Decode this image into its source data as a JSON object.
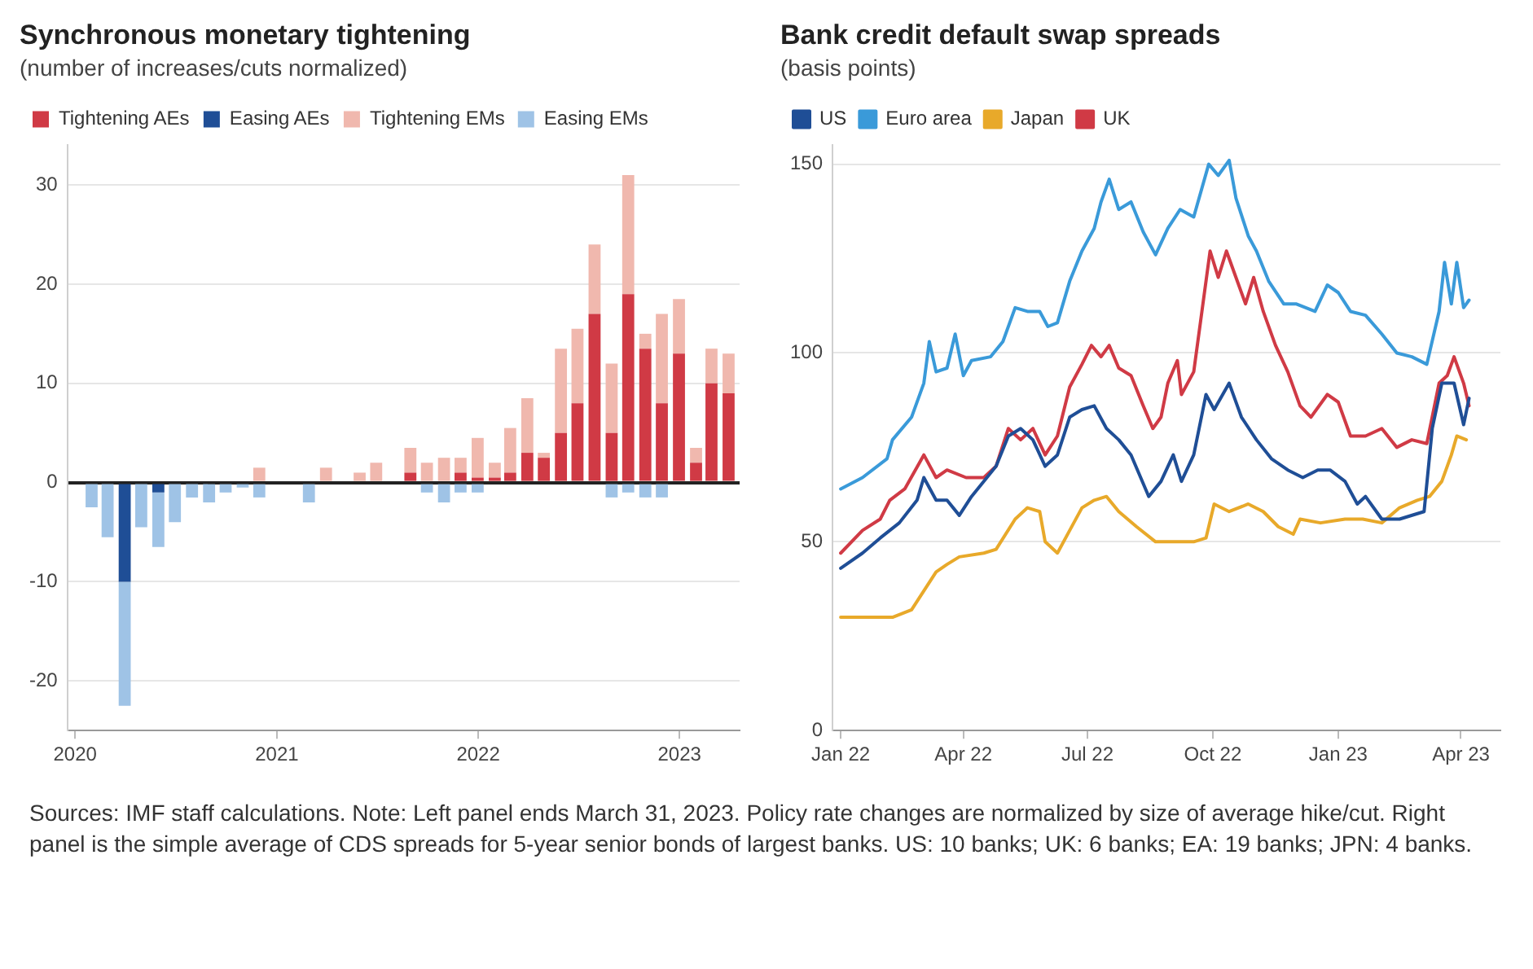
{
  "chart_data": [
    {
      "type": "bar",
      "title": "Synchronous monetary tightening",
      "subtitle": "(number of increases/cuts normalized)",
      "stacked": true,
      "legend": "top left",
      "grid": "y",
      "x": [
        "2020-01-31",
        "2020-02-29",
        "2020-03-31",
        "2020-04-30",
        "2020-05-31",
        "2020-06-30",
        "2020-07-31",
        "2020-08-31",
        "2020-09-30",
        "2020-10-31",
        "2020-11-30",
        "2020-12-31",
        "2021-01-31",
        "2021-02-28",
        "2021-03-31",
        "2021-04-30",
        "2021-05-31",
        "2021-06-30",
        "2021-07-31",
        "2021-08-31",
        "2021-09-30",
        "2021-10-31",
        "2021-11-30",
        "2021-12-31",
        "2022-01-31",
        "2022-02-28",
        "2022-03-31",
        "2022-04-30",
        "2022-05-31",
        "2022-06-30",
        "2022-07-31",
        "2022-08-31",
        "2022-09-30",
        "2022-10-31",
        "2022-11-30",
        "2022-12-31",
        "2023-01-31",
        "2023-02-28",
        "2023-03-31"
      ],
      "xlim": [
        "2019-12-18",
        "2023-04-20"
      ],
      "xticks": [
        {
          "value": "2020-01-01",
          "label": "2020"
        },
        {
          "value": "2021-01-01",
          "label": "2021"
        },
        {
          "value": "2022-01-01",
          "label": "2022"
        },
        {
          "value": "2023-01-01",
          "label": "2023"
        }
      ],
      "ylim": [
        -25,
        34
      ],
      "yticks": [
        -20,
        -10,
        0,
        10,
        20,
        30
      ],
      "series": [
        {
          "name": "Tightening AEs",
          "color": "#d03a45",
          "values": [
            null,
            null,
            null,
            null,
            null,
            null,
            null,
            null,
            null,
            null,
            null,
            null,
            null,
            null,
            null,
            null,
            null,
            null,
            null,
            1,
            null,
            null,
            1,
            0.5,
            0.5,
            1,
            3,
            2.5,
            5,
            8,
            17,
            5,
            19,
            13.5,
            8,
            13,
            2,
            10,
            9
          ]
        },
        {
          "name": "Easing AEs",
          "color": "#1f4e96",
          "values": [
            null,
            null,
            -10,
            null,
            -1,
            null,
            null,
            null,
            null,
            null,
            null,
            null,
            null,
            null,
            null,
            null,
            null,
            null,
            null,
            null,
            null,
            null,
            null,
            null,
            null,
            null,
            null,
            null,
            null,
            null,
            null,
            null,
            null,
            null,
            null,
            null,
            null,
            null,
            null
          ]
        },
        {
          "name": "Tightening EMs",
          "color": "#f0b8ae",
          "values": [
            null,
            null,
            null,
            null,
            null,
            null,
            null,
            null,
            null,
            null,
            1.5,
            null,
            null,
            null,
            1.5,
            null,
            1,
            2,
            null,
            2.5,
            2,
            2.5,
            1.5,
            4,
            1.5,
            4.5,
            5.5,
            0.5,
            8.5,
            7.5,
            7,
            7,
            12,
            1.5,
            9,
            5.5,
            1.5,
            3.5,
            4
          ]
        },
        {
          "name": "Easing EMs",
          "color": "#9fc3e6",
          "values": [
            -2.5,
            -5.5,
            -12.5,
            -4.5,
            -5.5,
            -4,
            -1.5,
            -2,
            -1,
            -0.5,
            -1.5,
            null,
            null,
            -2,
            null,
            null,
            null,
            null,
            null,
            null,
            -1,
            -2,
            -1,
            -1,
            null,
            null,
            null,
            null,
            null,
            null,
            null,
            -1.5,
            -1,
            -1.5,
            -1.5,
            null,
            null,
            null,
            null
          ]
        }
      ],
      "annotations": [
        "Sources: IMF staff calculations. Note: Left panel ends March 31, 2023. Policy rate changes are normalized by size of average hike/cut. Right panel is the simple average of CDS spreads for 5-year senior bonds of largest banks. US: 10 banks; UK: 6 banks; EA: 19 banks; JPN: 4 banks."
      ]
    },
    {
      "type": "line",
      "title": "Bank credit default swap spreads",
      "subtitle": "(basis points)",
      "legend": "top left",
      "grid": "y",
      "xlim": [
        "2021-12-26",
        "2023-04-30"
      ],
      "xticks": [
        {
          "value": "2022-01-01",
          "label": "Jan 22"
        },
        {
          "value": "2022-04-01",
          "label": "Apr 22"
        },
        {
          "value": "2022-07-01",
          "label": "Jul 22"
        },
        {
          "value": "2022-10-01",
          "label": "Oct 22"
        },
        {
          "value": "2023-01-01",
          "label": "Jan 23"
        },
        {
          "value": "2023-04-01",
          "label": "Apr 23"
        }
      ],
      "ylim": [
        0,
        155
      ],
      "yticks": [
        0,
        50,
        100,
        150
      ],
      "series": [
        {
          "name": "US",
          "color": "#1f4e96",
          "x": [
            "2022-01-01",
            "2022-01-17",
            "2022-01-30",
            "2022-02-13",
            "2022-02-26",
            "2022-03-03",
            "2022-03-12",
            "2022-03-20",
            "2022-03-29",
            "2022-04-07",
            "2022-04-25",
            "2022-05-04",
            "2022-05-13",
            "2022-05-22",
            "2022-05-31",
            "2022-06-09",
            "2022-06-18",
            "2022-06-27",
            "2022-07-06",
            "2022-07-15",
            "2022-07-24",
            "2022-08-02",
            "2022-08-15",
            "2022-08-24",
            "2022-09-02",
            "2022-09-08",
            "2022-09-17",
            "2022-09-26",
            "2022-10-02",
            "2022-10-13",
            "2022-10-22",
            "2022-11-02",
            "2022-11-13",
            "2022-11-25",
            "2022-12-06",
            "2022-12-17",
            "2022-12-26",
            "2023-01-06",
            "2023-01-15",
            "2023-01-21",
            "2023-02-02",
            "2023-02-15",
            "2023-03-05",
            "2023-03-11",
            "2023-03-18",
            "2023-03-27",
            "2023-04-03",
            "2023-04-07"
          ],
          "values": [
            43,
            47,
            51,
            55,
            61,
            67,
            61,
            61,
            57,
            62,
            70,
            78,
            80,
            77,
            70,
            73,
            83,
            85,
            86,
            80,
            77,
            73,
            62,
            66,
            73,
            66,
            73,
            89,
            85,
            92,
            83,
            77,
            72,
            69,
            67,
            69,
            69,
            66,
            60,
            62,
            56,
            56,
            58,
            80,
            92,
            92,
            81,
            88
          ]
        },
        {
          "name": "Euro area",
          "color": "#3a9ad9",
          "x": [
            "2022-01-01",
            "2022-01-17",
            "2022-02-04",
            "2022-02-08",
            "2022-02-22",
            "2022-03-03",
            "2022-03-07",
            "2022-03-12",
            "2022-03-20",
            "2022-03-26",
            "2022-04-01",
            "2022-04-07",
            "2022-04-21",
            "2022-04-30",
            "2022-05-09",
            "2022-05-18",
            "2022-05-27",
            "2022-06-02",
            "2022-06-09",
            "2022-06-18",
            "2022-06-27",
            "2022-07-06",
            "2022-07-11",
            "2022-07-17",
            "2022-07-24",
            "2022-08-02",
            "2022-08-11",
            "2022-08-20",
            "2022-08-29",
            "2022-09-07",
            "2022-09-17",
            "2022-09-28",
            "2022-10-05",
            "2022-10-13",
            "2022-10-18",
            "2022-10-27",
            "2022-11-02",
            "2022-11-11",
            "2022-11-22",
            "2022-12-01",
            "2022-12-15",
            "2022-12-24",
            "2023-01-01",
            "2023-01-10",
            "2023-01-21",
            "2023-02-02",
            "2023-02-13",
            "2023-02-24",
            "2023-03-07",
            "2023-03-16",
            "2023-03-20",
            "2023-03-25",
            "2023-03-29",
            "2023-04-03",
            "2023-04-07"
          ],
          "values": [
            64,
            67,
            72,
            77,
            83,
            92,
            103,
            95,
            96,
            105,
            94,
            98,
            99,
            103,
            112,
            111,
            111,
            107,
            108,
            119,
            127,
            133,
            140,
            146,
            138,
            140,
            132,
            126,
            133,
            138,
            136,
            150,
            147,
            151,
            141,
            131,
            127,
            119,
            113,
            113,
            111,
            118,
            116,
            111,
            110,
            105,
            100,
            99,
            97,
            111,
            124,
            113,
            124,
            112,
            114
          ]
        },
        {
          "name": "Japan",
          "color": "#e8a92a",
          "x": [
            "2022-01-01",
            "2022-02-08",
            "2022-02-22",
            "2022-03-03",
            "2022-03-12",
            "2022-03-20",
            "2022-03-29",
            "2022-04-16",
            "2022-04-25",
            "2022-05-09",
            "2022-05-18",
            "2022-05-27",
            "2022-05-31",
            "2022-06-09",
            "2022-06-18",
            "2022-06-27",
            "2022-07-06",
            "2022-07-15",
            "2022-07-24",
            "2022-08-06",
            "2022-08-20",
            "2022-09-07",
            "2022-09-17",
            "2022-09-26",
            "2022-10-02",
            "2022-10-13",
            "2022-10-27",
            "2022-11-07",
            "2022-11-18",
            "2022-11-29",
            "2022-12-04",
            "2022-12-19",
            "2023-01-06",
            "2023-01-19",
            "2023-02-02",
            "2023-02-15",
            "2023-02-28",
            "2023-03-09",
            "2023-03-18",
            "2023-03-25",
            "2023-03-29",
            "2023-04-05"
          ],
          "values": [
            30,
            30,
            32,
            37,
            42,
            44,
            46,
            47,
            48,
            56,
            59,
            58,
            50,
            47,
            53,
            59,
            61,
            62,
            58,
            54,
            50,
            50,
            50,
            51,
            60,
            58,
            60,
            58,
            54,
            52,
            56,
            55,
            56,
            56,
            55,
            59,
            61,
            62,
            66,
            73,
            78,
            77
          ]
        },
        {
          "name": "UK",
          "color": "#d03a45",
          "x": [
            "2022-01-01",
            "2022-01-17",
            "2022-01-30",
            "2022-02-06",
            "2022-02-17",
            "2022-03-03",
            "2022-03-12",
            "2022-03-20",
            "2022-04-03",
            "2022-04-16",
            "2022-04-25",
            "2022-05-04",
            "2022-05-13",
            "2022-05-22",
            "2022-05-31",
            "2022-06-09",
            "2022-06-18",
            "2022-06-27",
            "2022-07-04",
            "2022-07-11",
            "2022-07-17",
            "2022-07-24",
            "2022-08-02",
            "2022-08-11",
            "2022-08-18",
            "2022-08-24",
            "2022-08-29",
            "2022-09-05",
            "2022-09-08",
            "2022-09-17",
            "2022-09-23",
            "2022-09-29",
            "2022-10-05",
            "2022-10-11",
            "2022-10-18",
            "2022-10-25",
            "2022-10-31",
            "2022-11-07",
            "2022-11-16",
            "2022-11-25",
            "2022-12-04",
            "2022-12-12",
            "2022-12-24",
            "2023-01-01",
            "2023-01-10",
            "2023-01-21",
            "2023-02-02",
            "2023-02-13",
            "2023-02-24",
            "2023-03-07",
            "2023-03-16",
            "2023-03-22",
            "2023-03-27",
            "2023-04-03",
            "2023-04-07"
          ],
          "values": [
            47,
            53,
            56,
            61,
            64,
            73,
            67,
            69,
            67,
            67,
            70,
            80,
            77,
            80,
            73,
            78,
            91,
            97,
            102,
            99,
            102,
            96,
            94,
            86,
            80,
            83,
            92,
            98,
            89,
            95,
            111,
            127,
            120,
            127,
            120,
            113,
            120,
            111,
            102,
            95,
            86,
            83,
            89,
            87,
            78,
            78,
            80,
            75,
            77,
            76,
            92,
            94,
            99,
            92,
            86
          ]
        }
      ]
    }
  ]
}
